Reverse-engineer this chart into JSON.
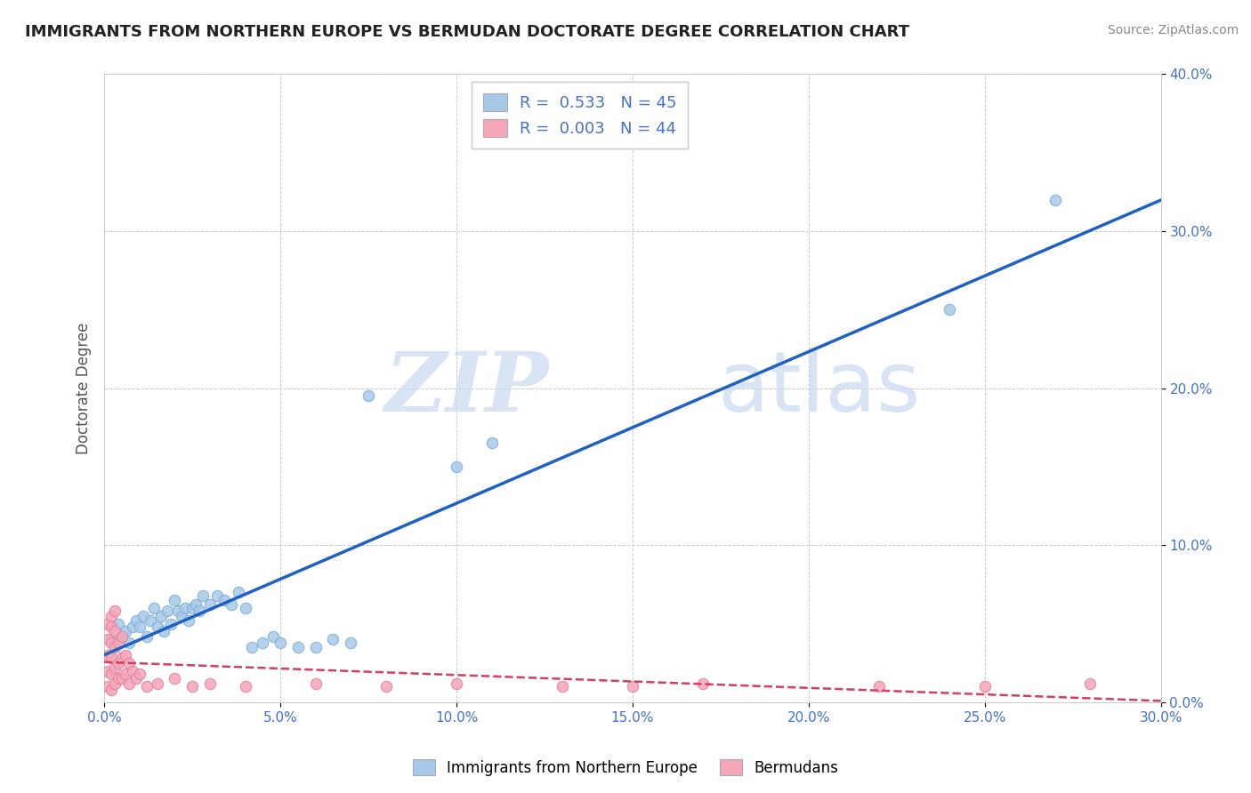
{
  "title": "IMMIGRANTS FROM NORTHERN EUROPE VS BERMUDAN DOCTORATE DEGREE CORRELATION CHART",
  "source": "Source: ZipAtlas.com",
  "xlim": [
    0.0,
    0.3
  ],
  "ylim": [
    0.0,
    0.4
  ],
  "blue_color": "#a8c8e8",
  "pink_color": "#f4a6b8",
  "trendline_blue": "#2060c0",
  "trendline_pink": "#d04060",
  "watermark_zip": "ZIP",
  "watermark_atlas": "atlas",
  "blue_scatter": [
    [
      0.002,
      0.04
    ],
    [
      0.004,
      0.05
    ],
    [
      0.005,
      0.042
    ],
    [
      0.006,
      0.045
    ],
    [
      0.007,
      0.038
    ],
    [
      0.008,
      0.048
    ],
    [
      0.009,
      0.052
    ],
    [
      0.01,
      0.048
    ],
    [
      0.011,
      0.055
    ],
    [
      0.012,
      0.042
    ],
    [
      0.013,
      0.052
    ],
    [
      0.014,
      0.06
    ],
    [
      0.015,
      0.048
    ],
    [
      0.016,
      0.055
    ],
    [
      0.017,
      0.045
    ],
    [
      0.018,
      0.058
    ],
    [
      0.019,
      0.05
    ],
    [
      0.02,
      0.065
    ],
    [
      0.021,
      0.058
    ],
    [
      0.022,
      0.055
    ],
    [
      0.023,
      0.06
    ],
    [
      0.024,
      0.052
    ],
    [
      0.025,
      0.06
    ],
    [
      0.026,
      0.062
    ],
    [
      0.027,
      0.058
    ],
    [
      0.028,
      0.068
    ],
    [
      0.03,
      0.062
    ],
    [
      0.032,
      0.068
    ],
    [
      0.034,
      0.065
    ],
    [
      0.036,
      0.062
    ],
    [
      0.038,
      0.07
    ],
    [
      0.04,
      0.06
    ],
    [
      0.042,
      0.035
    ],
    [
      0.045,
      0.038
    ],
    [
      0.048,
      0.042
    ],
    [
      0.05,
      0.038
    ],
    [
      0.055,
      0.035
    ],
    [
      0.06,
      0.035
    ],
    [
      0.065,
      0.04
    ],
    [
      0.07,
      0.038
    ],
    [
      0.075,
      0.195
    ],
    [
      0.1,
      0.15
    ],
    [
      0.11,
      0.165
    ],
    [
      0.24,
      0.25
    ],
    [
      0.27,
      0.32
    ]
  ],
  "pink_scatter": [
    [
      0.001,
      0.01
    ],
    [
      0.001,
      0.02
    ],
    [
      0.001,
      0.03
    ],
    [
      0.001,
      0.04
    ],
    [
      0.001,
      0.05
    ],
    [
      0.002,
      0.008
    ],
    [
      0.002,
      0.018
    ],
    [
      0.002,
      0.028
    ],
    [
      0.002,
      0.038
    ],
    [
      0.002,
      0.048
    ],
    [
      0.002,
      0.055
    ],
    [
      0.003,
      0.012
    ],
    [
      0.003,
      0.022
    ],
    [
      0.003,
      0.035
    ],
    [
      0.003,
      0.045
    ],
    [
      0.003,
      0.058
    ],
    [
      0.004,
      0.015
    ],
    [
      0.004,
      0.025
    ],
    [
      0.004,
      0.038
    ],
    [
      0.005,
      0.015
    ],
    [
      0.005,
      0.028
    ],
    [
      0.005,
      0.042
    ],
    [
      0.006,
      0.018
    ],
    [
      0.006,
      0.03
    ],
    [
      0.007,
      0.012
    ],
    [
      0.007,
      0.025
    ],
    [
      0.008,
      0.02
    ],
    [
      0.009,
      0.015
    ],
    [
      0.01,
      0.018
    ],
    [
      0.012,
      0.01
    ],
    [
      0.015,
      0.012
    ],
    [
      0.02,
      0.015
    ],
    [
      0.025,
      0.01
    ],
    [
      0.03,
      0.012
    ],
    [
      0.04,
      0.01
    ],
    [
      0.06,
      0.012
    ],
    [
      0.08,
      0.01
    ],
    [
      0.1,
      0.012
    ],
    [
      0.13,
      0.01
    ],
    [
      0.15,
      0.01
    ],
    [
      0.17,
      0.012
    ],
    [
      0.22,
      0.01
    ],
    [
      0.25,
      0.01
    ],
    [
      0.28,
      0.012
    ]
  ]
}
